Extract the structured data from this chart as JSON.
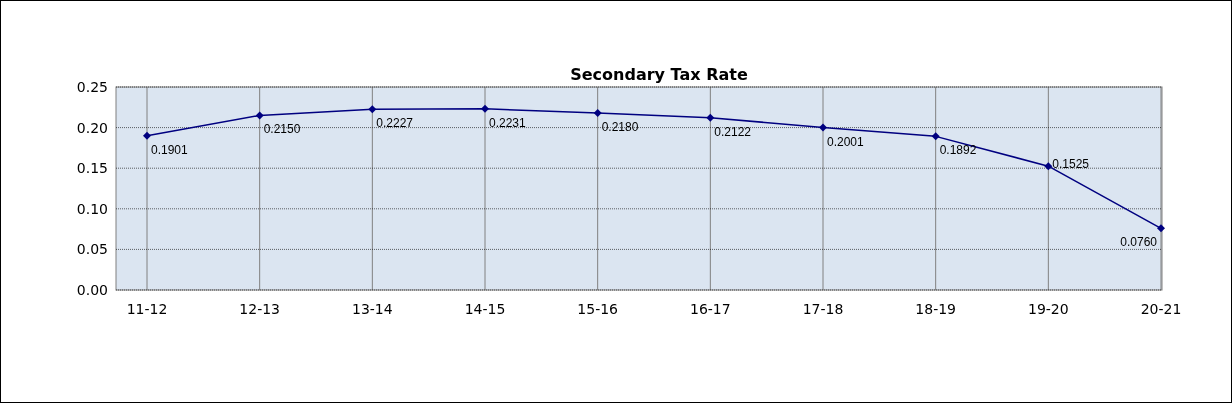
{
  "chart_data": {
    "type": "line",
    "title": "Secondary Tax Rate",
    "categories": [
      "11-12",
      "12-13",
      "13-14",
      "14-15",
      "15-16",
      "16-17",
      "17-18",
      "18-19",
      "19-20",
      "20-21"
    ],
    "series": [
      {
        "color": "#000080",
        "values": [
          0.1901,
          0.215,
          0.2227,
          0.2231,
          0.218,
          0.2122,
          0.2001,
          0.1892,
          0.1525,
          0.076
        ],
        "value_labels": [
          "0.1901",
          "0.2150",
          "0.2227",
          "0.2231",
          "0.2180",
          "0.2122",
          "0.2001",
          "0.1892",
          "0.1525",
          "0.0760"
        ]
      }
    ],
    "ylim": [
      0,
      0.25
    ],
    "yticks": [
      {
        "value": 0,
        "label": "0.00"
      },
      {
        "value": 0.05,
        "label": "0.05"
      },
      {
        "value": 0.1,
        "label": "0.10"
      },
      {
        "value": 0.15,
        "label": "0.15"
      },
      {
        "value": 0.2,
        "label": "0.20"
      },
      {
        "value": 0.25,
        "label": "0.25"
      }
    ],
    "grid": true,
    "marker": "diamond",
    "line_style": "solid"
  }
}
